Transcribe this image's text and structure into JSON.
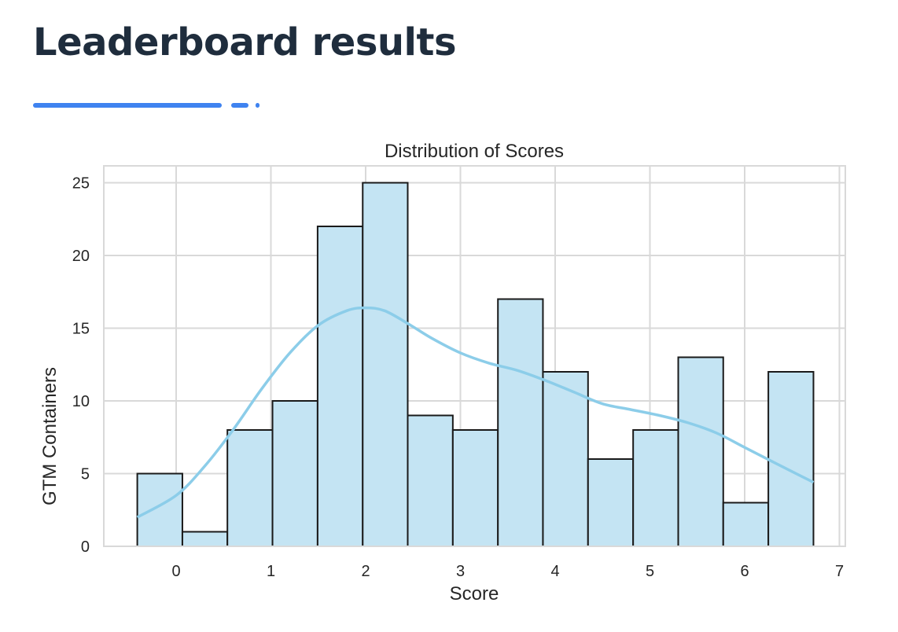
{
  "header": {
    "title": "Leaderboard results"
  },
  "colors": {
    "accent": "#3f83f0",
    "bar_fill": "#c4e4f3",
    "bar_edge": "#1a1a1a",
    "kde_line": "#8ccde9",
    "grid": "#d9d9d9"
  },
  "chart_data": {
    "type": "bar",
    "title": "Distribution of Scores",
    "xlabel": "Score",
    "ylabel": "GTM Containers",
    "xlim": [
      -0.6,
      7
    ],
    "ylim": [
      0,
      25.5
    ],
    "xticks": [
      0,
      1,
      2,
      3,
      4,
      5,
      6,
      7
    ],
    "yticks": [
      0,
      5,
      10,
      15,
      20,
      25
    ],
    "grid": true,
    "bin_edges": [
      -0.41,
      0.066,
      0.541,
      1.017,
      1.493,
      1.969,
      2.444,
      2.92,
      3.396,
      3.871,
      4.347,
      4.823,
      5.299,
      5.774,
      6.25,
      6.726
    ],
    "counts": [
      5,
      1,
      8,
      10,
      22,
      25,
      9,
      8,
      17,
      12,
      6,
      8,
      13,
      3,
      12
    ],
    "kde": {
      "x": [
        -0.41,
        0.0,
        0.3,
        0.6,
        0.9,
        1.2,
        1.5,
        1.8,
        2.0,
        2.2,
        2.45,
        2.7,
        3.0,
        3.3,
        3.6,
        3.9,
        4.2,
        4.5,
        4.8,
        5.1,
        5.4,
        5.7,
        6.0,
        6.3,
        6.726
      ],
      "y": [
        2.0,
        3.5,
        5.5,
        8.0,
        10.8,
        13.3,
        15.2,
        16.2,
        16.4,
        16.2,
        15.3,
        14.3,
        13.3,
        12.6,
        12.1,
        11.4,
        10.6,
        9.8,
        9.4,
        9.0,
        8.5,
        7.8,
        6.8,
        5.8,
        4.4
      ]
    }
  }
}
